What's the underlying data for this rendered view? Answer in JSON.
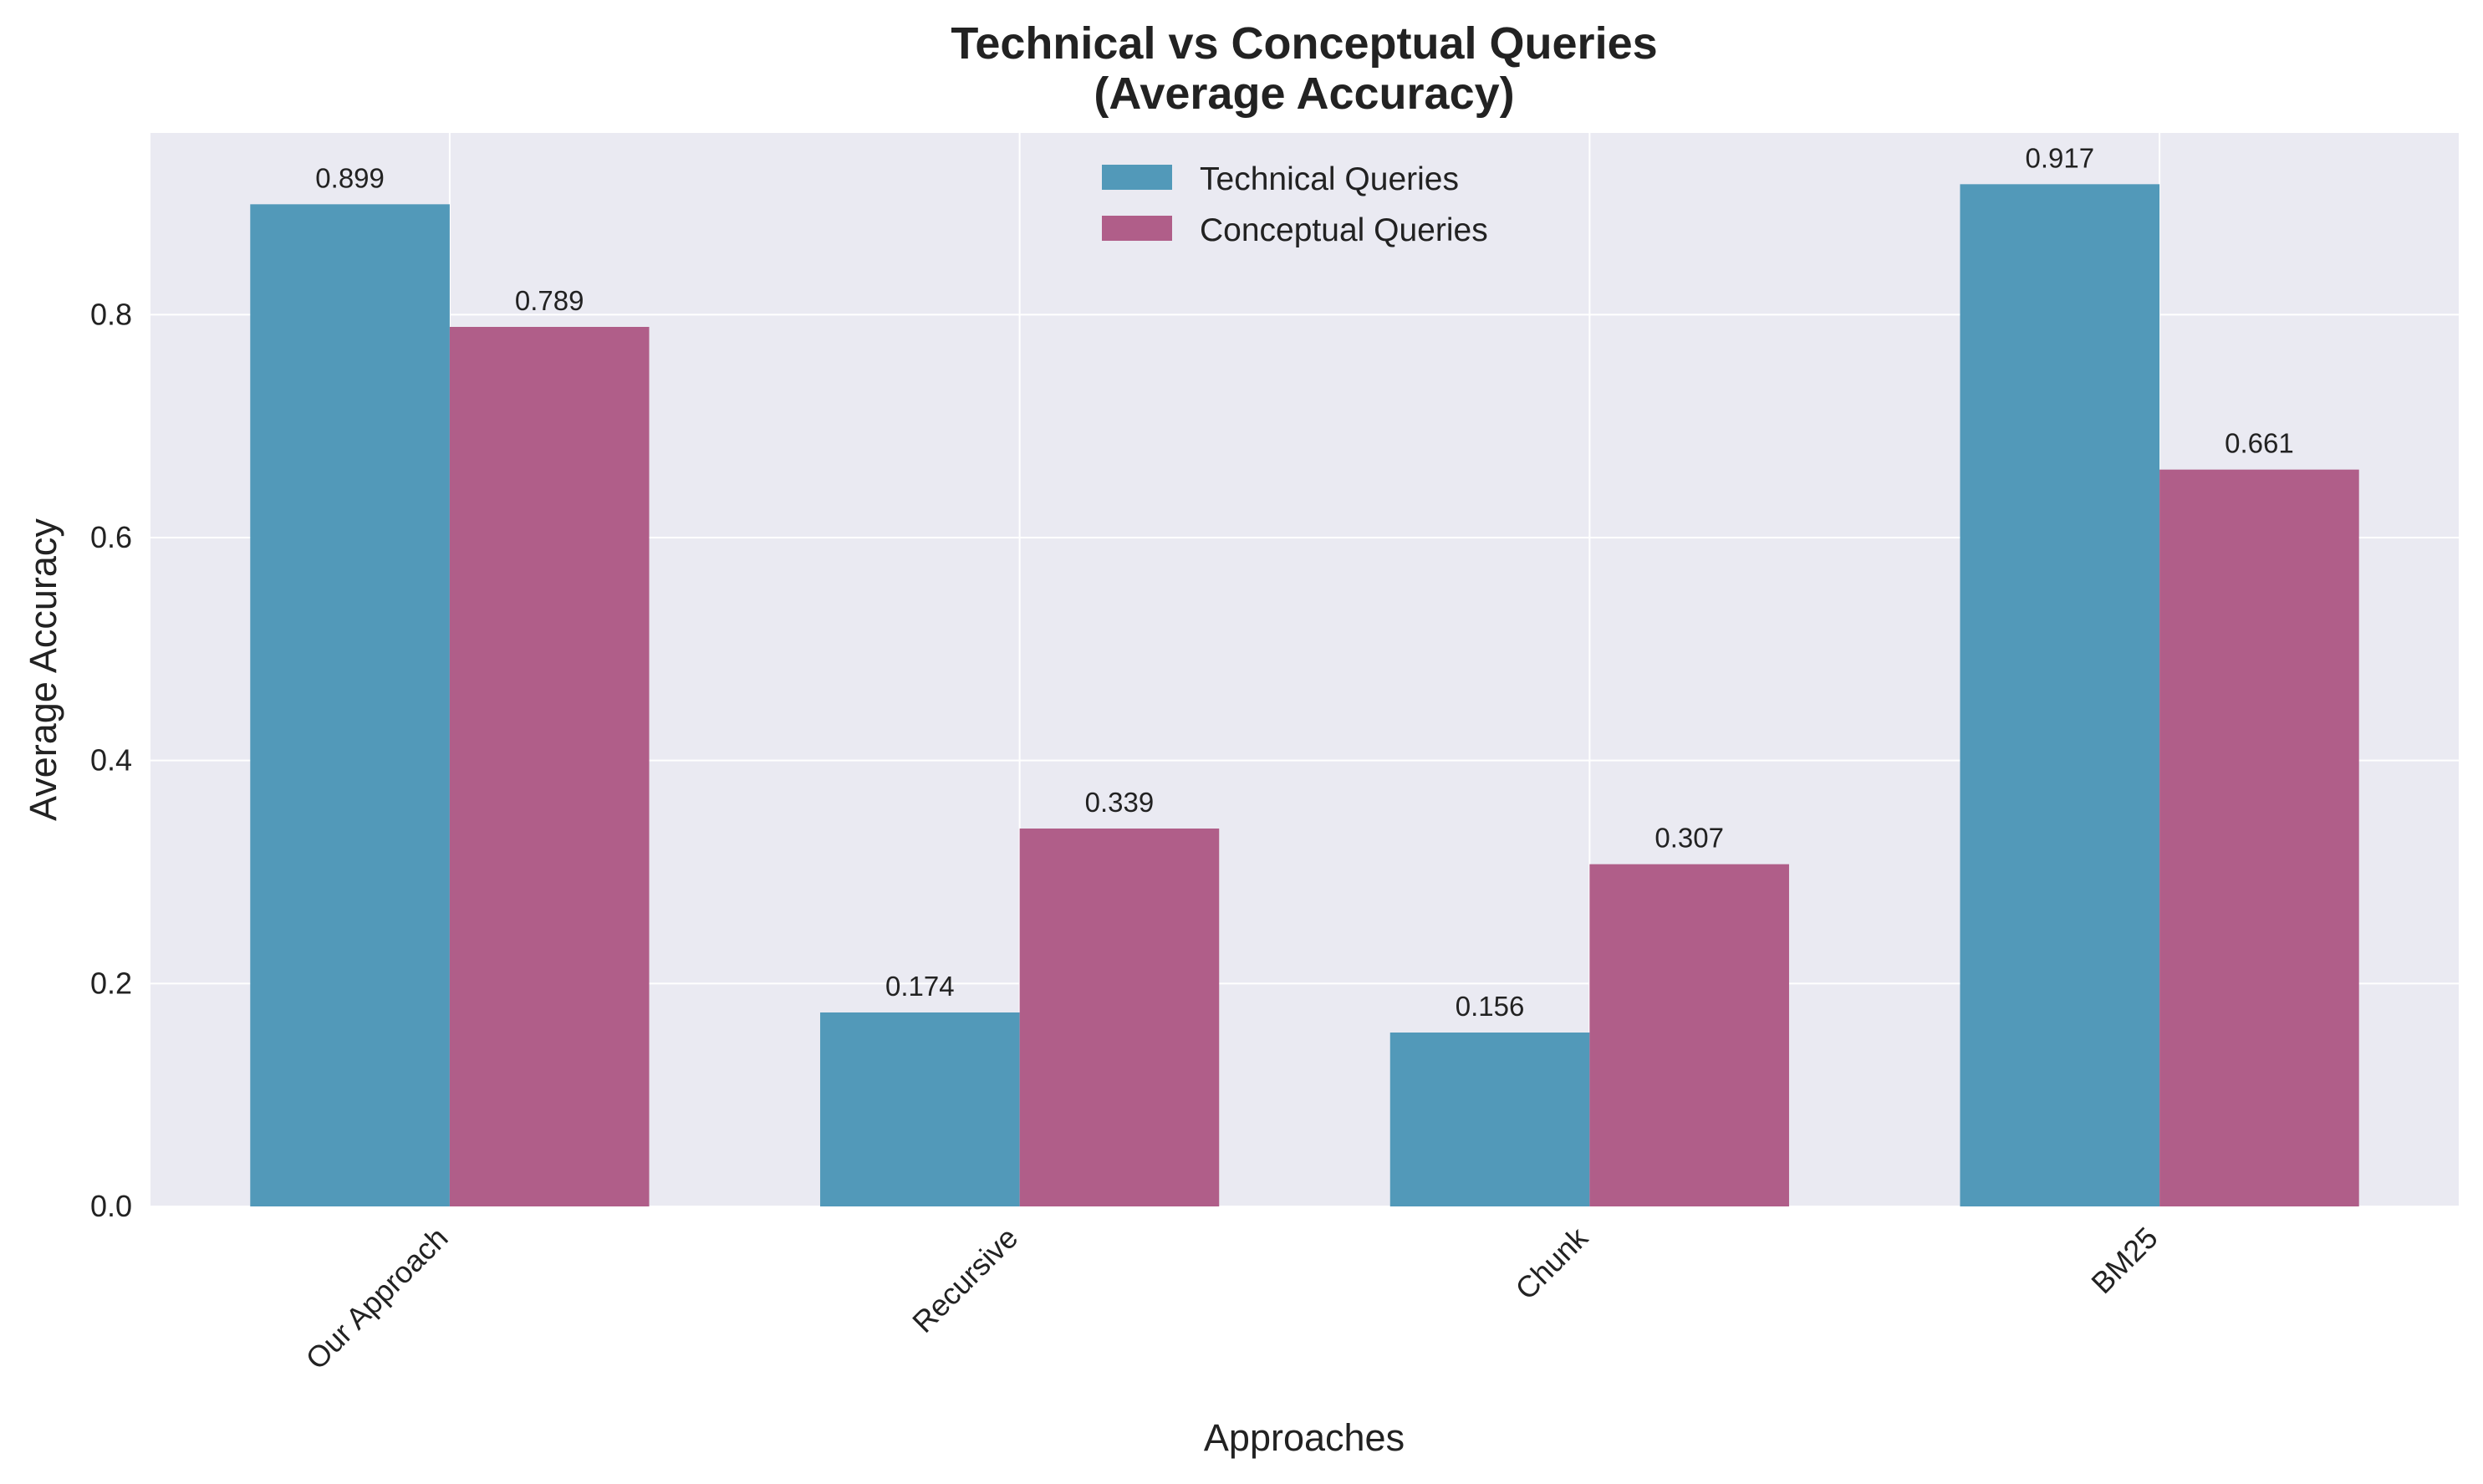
{
  "chart_data": {
    "type": "bar",
    "title": "Technical vs Conceptual Queries",
    "subtitle": "(Average Accuracy)",
    "xlabel": "Approaches",
    "ylabel": "Average Accuracy",
    "categories": [
      "Our Approach",
      "Recursive",
      "Chunk",
      "BM25"
    ],
    "series": [
      {
        "name": "Technical Queries",
        "color": "#5299b9",
        "values": [
          0.899,
          0.174,
          0.156,
          0.917
        ],
        "value_labels": [
          "0.899",
          "0.174",
          "0.156",
          "0.917"
        ]
      },
      {
        "name": "Conceptual Queries",
        "color": "#b05e89",
        "values": [
          0.789,
          0.339,
          0.307,
          0.661
        ],
        "value_labels": [
          "0.789",
          "0.339",
          "0.307",
          "0.661"
        ]
      }
    ],
    "ylim": [
      0,
      0.963
    ],
    "yticks": [
      0.0,
      0.2,
      0.4,
      0.6,
      0.8
    ],
    "ytick_labels": [
      "0.0",
      "0.2",
      "0.4",
      "0.6",
      "0.8"
    ],
    "grid": true,
    "legend_position": "top-center",
    "plot_background": "#eaeaf2"
  }
}
